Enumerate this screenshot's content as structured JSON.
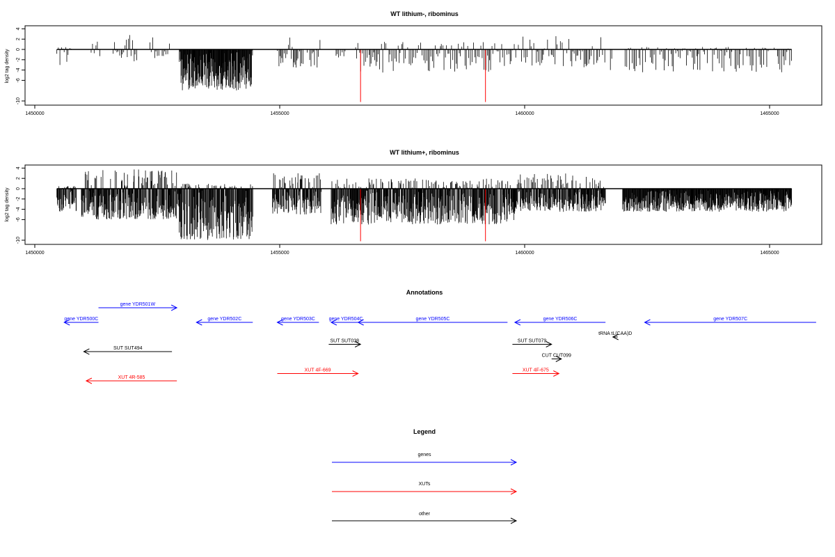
{
  "chart_data": [
    {
      "type": "bar",
      "title": "WT lithium-, ribominus",
      "ylabel": "log2 tag density",
      "xlim": [
        1450000,
        1466000
      ],
      "ylim": [
        -10,
        4
      ],
      "xticks": [
        1450000,
        1455000,
        1460000,
        1465000
      ],
      "yticks": [
        4,
        2,
        0,
        -2,
        -4,
        -6,
        -10
      ],
      "baseline": {
        "from": 1450450,
        "to": 1465450
      },
      "red_markers": [
        1456650,
        1459200
      ],
      "segments": [
        {
          "from": 1450450,
          "to": 1450750,
          "pos_max": 0.5,
          "neg_max": 3.5
        },
        {
          "from": 1451150,
          "to": 1451350,
          "pos_max": 2.0,
          "neg_max": 2.0
        },
        {
          "from": 1451600,
          "to": 1452100,
          "pos_max": 2.8,
          "neg_max": 2.5
        },
        {
          "from": 1452350,
          "to": 1452750,
          "pos_max": 2.8,
          "neg_max": 2.0
        },
        {
          "from": 1452950,
          "to": 1454450,
          "pos_max": 0.2,
          "neg_max": 8.0,
          "dense": true
        },
        {
          "from": 1454950,
          "to": 1455850,
          "pos_max": 3.8,
          "neg_max": 4.0
        },
        {
          "from": 1456150,
          "to": 1456350,
          "pos_max": 2.8,
          "neg_max": 2.5
        },
        {
          "from": 1456550,
          "to": 1459750,
          "pos_max": 1.5,
          "neg_max": 4.5
        },
        {
          "from": 1459750,
          "to": 1461650,
          "pos_max": 2.6,
          "neg_max": 3.5
        },
        {
          "from": 1461750,
          "to": 1461800,
          "pos_max": 0.0,
          "neg_max": 6.5
        },
        {
          "from": 1462050,
          "to": 1465450,
          "pos_max": 0.5,
          "neg_max": 4.5
        }
      ]
    },
    {
      "type": "bar",
      "title": "WT lithium+, ribominus",
      "ylabel": "log2 tag density",
      "xlim": [
        1450000,
        1466000
      ],
      "ylim": [
        -10,
        4
      ],
      "xticks": [
        1450000,
        1455000,
        1460000,
        1465000
      ],
      "yticks": [
        4,
        2,
        0,
        -2,
        -4,
        -6,
        -10
      ],
      "baseline": {
        "from": 1450450,
        "to": 1465450
      },
      "red_markers": [
        1456650,
        1459200
      ],
      "segments": [
        {
          "from": 1450450,
          "to": 1450850,
          "pos_max": 0.5,
          "neg_max": 4.5,
          "dense": true
        },
        {
          "from": 1450950,
          "to": 1452950,
          "pos_max": 3.8,
          "neg_max": 6.0,
          "dense": true
        },
        {
          "from": 1452950,
          "to": 1454450,
          "pos_max": 1.0,
          "neg_max": 10.0,
          "dense": true
        },
        {
          "from": 1454850,
          "to": 1455850,
          "pos_max": 3.0,
          "neg_max": 5.0,
          "dense": true
        },
        {
          "from": 1456050,
          "to": 1459800,
          "pos_max": 2.0,
          "neg_max": 7.0,
          "dense": true
        },
        {
          "from": 1459800,
          "to": 1461650,
          "pos_max": 3.0,
          "neg_max": 4.5,
          "dense": true
        },
        {
          "from": 1462000,
          "to": 1465450,
          "pos_max": 0.3,
          "neg_max": 4.5,
          "dense": true
        }
      ]
    }
  ],
  "annotations": {
    "title": "Annotations",
    "features": [
      {
        "label": "gene YDR500C",
        "category": "gene",
        "strand": "-",
        "from": 1450600,
        "to": 1451300,
        "row": 0
      },
      {
        "label": "gene YDR501W",
        "category": "gene",
        "strand": "+",
        "from": 1451300,
        "to": 1452900,
        "row": -1
      },
      {
        "label": "gene YDR502C",
        "category": "gene",
        "strand": "-",
        "from": 1453300,
        "to": 1454450,
        "row": 0
      },
      {
        "label": "gene YDR503C",
        "category": "gene",
        "strand": "-",
        "from": 1454950,
        "to": 1455800,
        "row": 0
      },
      {
        "label": "gene YDR504C",
        "category": "gene",
        "strand": "-",
        "from": 1456050,
        "to": 1456650,
        "row": 0
      },
      {
        "label": "gene YDR505C",
        "category": "gene",
        "strand": "-",
        "from": 1456600,
        "to": 1459650,
        "row": 0
      },
      {
        "label": "gene YDR506C",
        "category": "gene",
        "strand": "-",
        "from": 1459800,
        "to": 1461650,
        "row": 0
      },
      {
        "label": "gene YDR507C",
        "category": "gene",
        "strand": "-",
        "from": 1462450,
        "to": 1465950,
        "row": 0
      },
      {
        "label": "tRNA tL(CAA)D",
        "category": "other",
        "strand": "-",
        "from": 1461800,
        "to": 1461900,
        "row": 1
      },
      {
        "label": "SUT SUT494",
        "category": "other",
        "strand": "-",
        "from": 1451000,
        "to": 1452800,
        "row": 2
      },
      {
        "label": "SUT SUT038",
        "category": "other",
        "strand": "+",
        "from": 1456000,
        "to": 1456650,
        "row": 1.5
      },
      {
        "label": "SUT SUT079",
        "category": "other",
        "strand": "+",
        "from": 1459750,
        "to": 1460550,
        "row": 1.5
      },
      {
        "label": "CUT CUT099",
        "category": "other",
        "strand": "+",
        "from": 1460550,
        "to": 1460750,
        "row": 2.5
      },
      {
        "label": "XUT 4R-585",
        "category": "XUT",
        "strand": "-",
        "from": 1451050,
        "to": 1452900,
        "row": 4
      },
      {
        "label": "XUT 4F-669",
        "category": "XUT",
        "strand": "+",
        "from": 1454950,
        "to": 1456600,
        "row": 3.5
      },
      {
        "label": "XUT 4F-675",
        "category": "XUT",
        "strand": "+",
        "from": 1459750,
        "to": 1460700,
        "row": 3.5
      }
    ]
  },
  "legend": {
    "title": "Legend",
    "entries": [
      {
        "label": "genes",
        "color": "#0000ff"
      },
      {
        "label": "XUTs",
        "color": "#ff0000"
      },
      {
        "label": "other",
        "color": "#000000"
      }
    ]
  },
  "colors": {
    "gene": "#0000ff",
    "XUT": "#ff0000",
    "other": "#000000",
    "marker": "#ff0000",
    "bars": "#000000"
  }
}
